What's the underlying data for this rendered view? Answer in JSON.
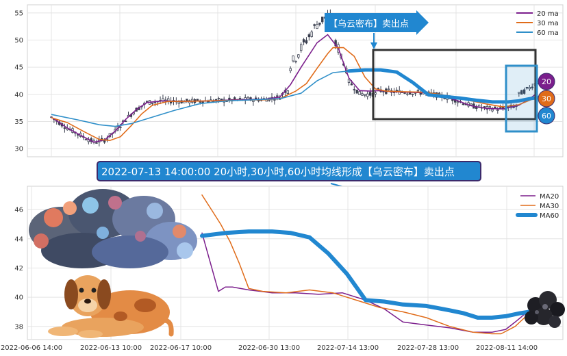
{
  "chart_data": [
    {
      "type": "line",
      "panel": "top",
      "description_free": true,
      "y_ticks": [
        30,
        35,
        40,
        45,
        50,
        55
      ],
      "ylim": [
        28.5,
        56.5
      ],
      "legend": {
        "placement": "top-right",
        "entries": [
          "20 ma",
          "30 ma",
          "60 ma"
        ]
      },
      "annotation": "【乌云密布】卖出点",
      "badges": [
        "20",
        "30",
        "60"
      ],
      "series": [
        {
          "name": "20 ma",
          "color": "#7b1e8c",
          "points": [
            [
              0,
              35.8
            ],
            [
              6,
              33.8
            ],
            [
              12,
              32.2
            ],
            [
              16,
              31.2
            ],
            [
              20,
              31.6
            ],
            [
              24,
              33.2
            ],
            [
              28,
              35.4
            ],
            [
              32,
              37.2
            ],
            [
              36,
              38.5
            ],
            [
              42,
              38.8
            ],
            [
              50,
              38.7
            ],
            [
              60,
              38.8
            ],
            [
              70,
              39.0
            ],
            [
              80,
              39.1
            ],
            [
              86,
              39.5
            ],
            [
              90,
              41.8
            ],
            [
              94,
              45.0
            ],
            [
              100,
              49.5
            ],
            [
              104,
              51.0
            ],
            [
              108,
              48.5
            ],
            [
              112,
              43.0
            ],
            [
              116,
              40.7
            ],
            [
              120,
              40.6
            ],
            [
              124,
              40.7
            ],
            [
              128,
              40.5
            ],
            [
              134,
              40.4
            ],
            [
              140,
              40.3
            ],
            [
              146,
              39.8
            ],
            [
              152,
              39.0
            ],
            [
              158,
              37.9
            ],
            [
              164,
              37.4
            ],
            [
              170,
              37.3
            ],
            [
              176,
              38.0
            ],
            [
              180,
              39.2
            ],
            [
              183,
              40.3
            ]
          ]
        },
        {
          "name": "30 ma",
          "color": "#e06c1a",
          "points": [
            [
              0,
              35.7
            ],
            [
              6,
              34.8
            ],
            [
              12,
              33.2
            ],
            [
              18,
              31.7
            ],
            [
              22,
              31.5
            ],
            [
              26,
              32.2
            ],
            [
              30,
              34.2
            ],
            [
              34,
              36.4
            ],
            [
              38,
              38.0
            ],
            [
              44,
              38.7
            ],
            [
              50,
              38.7
            ],
            [
              60,
              38.8
            ],
            [
              70,
              38.9
            ],
            [
              80,
              39.0
            ],
            [
              86,
              39.2
            ],
            [
              92,
              40.6
            ],
            [
              96,
              42.0
            ],
            [
              100,
              44.8
            ],
            [
              104,
              47.5
            ],
            [
              106,
              48.6
            ],
            [
              110,
              48.6
            ],
            [
              114,
              47.0
            ],
            [
              118,
              43.2
            ],
            [
              122,
              41.0
            ],
            [
              126,
              40.6
            ],
            [
              132,
              40.5
            ],
            [
              140,
              40.4
            ],
            [
              146,
              40.0
            ],
            [
              152,
              39.4
            ],
            [
              158,
              38.8
            ],
            [
              164,
              38.2
            ],
            [
              170,
              37.7
            ],
            [
              176,
              38.1
            ],
            [
              180,
              38.9
            ],
            [
              183,
              39.5
            ]
          ]
        },
        {
          "name": "60 ma",
          "color": "#2f8fc9",
          "points": [
            [
              0,
              36.3
            ],
            [
              10,
              35.3
            ],
            [
              18,
              34.4
            ],
            [
              24,
              34.1
            ],
            [
              30,
              34.6
            ],
            [
              38,
              35.8
            ],
            [
              46,
              37.0
            ],
            [
              56,
              38.3
            ],
            [
              66,
              38.8
            ],
            [
              76,
              39.0
            ],
            [
              86,
              39.2
            ],
            [
              94,
              40.2
            ],
            [
              100,
              42.5
            ],
            [
              106,
              44.0
            ],
            [
              112,
              44.3
            ],
            [
              118,
              44.5
            ],
            [
              124,
              44.5
            ],
            [
              130,
              44.1
            ],
            [
              136,
              42.2
            ],
            [
              142,
              39.9
            ],
            [
              148,
              39.6
            ],
            [
              154,
              39.3
            ],
            [
              160,
              38.9
            ],
            [
              166,
              38.6
            ],
            [
              172,
              38.6
            ],
            [
              176,
              38.8
            ],
            [
              180,
              39.2
            ],
            [
              183,
              39.4
            ]
          ]
        }
      ]
    },
    {
      "type": "line",
      "panel": "bottom",
      "title": "2022-07-13 14:00:00 20小时,30小时,60小时均线形成【乌云密布】卖出点",
      "x_tick_labels": [
        "2022-06-06 14:00",
        "2022-06-13 10:00",
        "2022-06-17 10:00",
        "2022-06-30 13:00",
        "2022-07-14 13:00",
        "2022-07-28 13:00",
        "2022-08-11 14:00"
      ],
      "y_ticks": [
        38,
        40,
        42,
        44,
        46
      ],
      "ylim": [
        37.1,
        47.6
      ],
      "legend": {
        "placement": "top-right",
        "entries": [
          "MA20",
          "MA30",
          "MA60"
        ]
      },
      "series": [
        {
          "name": "MA20",
          "color": "#7b1e8c",
          "points": [
            [
              0,
              44.4
            ],
            [
              7,
              40.4
            ],
            [
              10,
              40.7
            ],
            [
              13,
              40.7
            ],
            [
              20,
              40.5
            ],
            [
              30,
              40.3
            ],
            [
              40,
              40.3
            ],
            [
              50,
              40.2
            ],
            [
              60,
              40.3
            ],
            [
              70,
              39.8
            ],
            [
              78,
              39.2
            ],
            [
              86,
              38.3
            ],
            [
              96,
              38.1
            ],
            [
              106,
              37.9
            ],
            [
              116,
              37.6
            ],
            [
              124,
              37.6
            ],
            [
              130,
              37.8
            ],
            [
              134,
              38.3
            ],
            [
              140,
              39.1
            ],
            [
              143,
              39.7
            ]
          ]
        },
        {
          "name": "MA30",
          "color": "#e06c1a",
          "points": [
            [
              0,
              47.0
            ],
            [
              4,
              46.0
            ],
            [
              8,
              45.0
            ],
            [
              12,
              43.8
            ],
            [
              16,
              42.3
            ],
            [
              20,
              40.6
            ],
            [
              26,
              40.4
            ],
            [
              36,
              40.3
            ],
            [
              46,
              40.5
            ],
            [
              56,
              40.3
            ],
            [
              66,
              39.8
            ],
            [
              76,
              39.3
            ],
            [
              86,
              39.0
            ],
            [
              96,
              38.6
            ],
            [
              106,
              38.0
            ],
            [
              116,
              37.6
            ],
            [
              124,
              37.5
            ],
            [
              128,
              37.5
            ],
            [
              134,
              38.0
            ],
            [
              140,
              38.9
            ],
            [
              143,
              39.4
            ]
          ]
        },
        {
          "name": "MA60",
          "color": "#2187d0",
          "points": [
            [
              0,
              44.2
            ],
            [
              10,
              44.4
            ],
            [
              20,
              44.5
            ],
            [
              30,
              44.5
            ],
            [
              38,
              44.4
            ],
            [
              46,
              44.1
            ],
            [
              54,
              43.0
            ],
            [
              62,
              41.6
            ],
            [
              70,
              39.8
            ],
            [
              78,
              39.7
            ],
            [
              86,
              39.5
            ],
            [
              96,
              39.4
            ],
            [
              106,
              39.1
            ],
            [
              112,
              38.9
            ],
            [
              118,
              38.6
            ],
            [
              124,
              38.6
            ],
            [
              130,
              38.7
            ],
            [
              136,
              38.9
            ],
            [
              140,
              39.0
            ],
            [
              143,
              39.1
            ]
          ]
        }
      ]
    }
  ],
  "colors": {
    "ma20": "#7b1e8c",
    "ma30": "#e06c1a",
    "ma60": "#2187d0",
    "banner_bg": "#2187d0",
    "banner_border": "#3b2a6b",
    "box_dark": "#333333",
    "box_blue": "#2f8fc9",
    "candle": "#3a3f4f"
  },
  "icons": [
    "cloud-illustration",
    "dog-illustration",
    "dark-cloud-icon",
    "arrow-callout"
  ]
}
